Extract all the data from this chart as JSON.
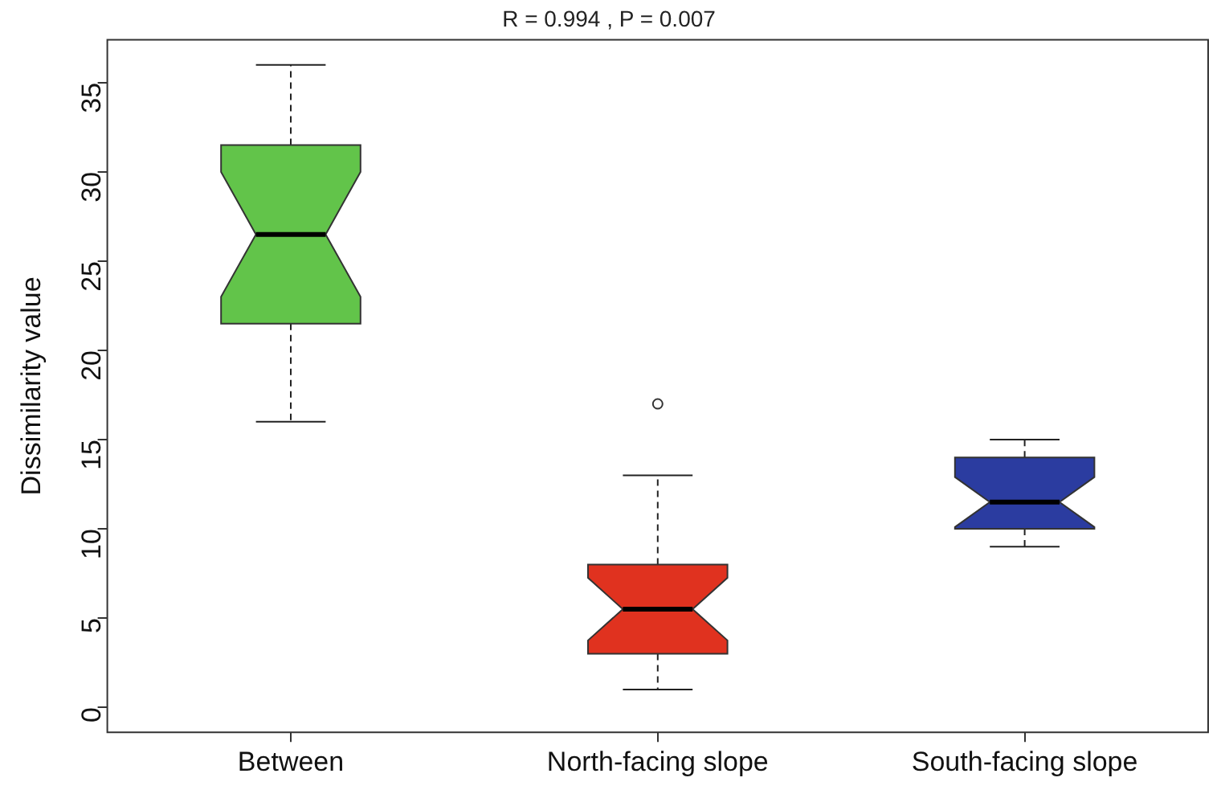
{
  "chart_data": {
    "type": "box",
    "title": "R = 0.994 , P = 0.007",
    "ylabel": "Dissimilarity value",
    "categories": [
      "Between",
      "North-facing slope",
      "South-facing slope"
    ],
    "colors": [
      "#62c44a",
      "#e0321f",
      "#2b3ca0"
    ],
    "boxes": [
      {
        "low": 16,
        "q1": 21.5,
        "median": 26.5,
        "q3": 31.5,
        "high": 36
      },
      {
        "low": 1,
        "q1": 3,
        "median": 5.5,
        "q3": 8,
        "high": 13,
        "outliers": [
          17
        ]
      },
      {
        "low": 9,
        "q1": 10,
        "median": 11.5,
        "q3": 14,
        "high": 15
      }
    ],
    "ylim": [
      -1.4,
      37.4
    ],
    "yticks": [
      0,
      5,
      10,
      15,
      20,
      25,
      30,
      35
    ],
    "grid": false,
    "legend": false
  }
}
